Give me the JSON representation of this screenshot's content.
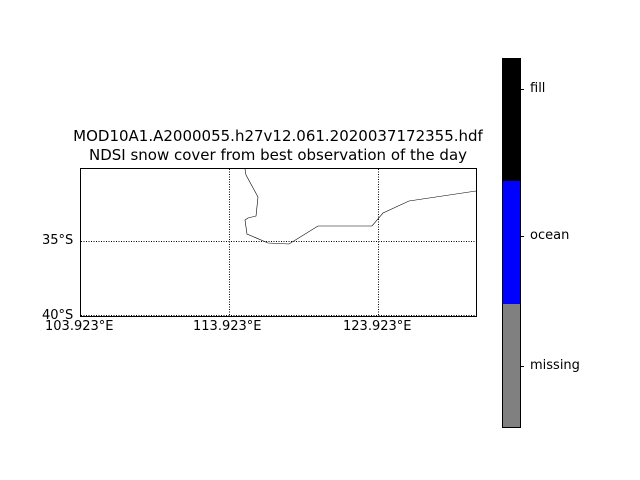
{
  "map": {
    "title_line1": "MOD10A1.A2000055.h27v12.061.2020037172355.hdf",
    "title_line2": "NDSI snow cover from best observation of the day",
    "lon_labels": [
      "103.923°E",
      "113.923°E",
      "123.923°E"
    ],
    "lat_labels": [
      "35°S",
      "40°S"
    ],
    "gridlines": true,
    "coastline_color": "#000000"
  },
  "colorbar": {
    "orientation": "vertical",
    "segments": [
      {
        "label": "fill",
        "color": "#000000"
      },
      {
        "label": "ocean",
        "color": "#0000ff"
      },
      {
        "label": "missing",
        "color": "#808080"
      }
    ]
  }
}
